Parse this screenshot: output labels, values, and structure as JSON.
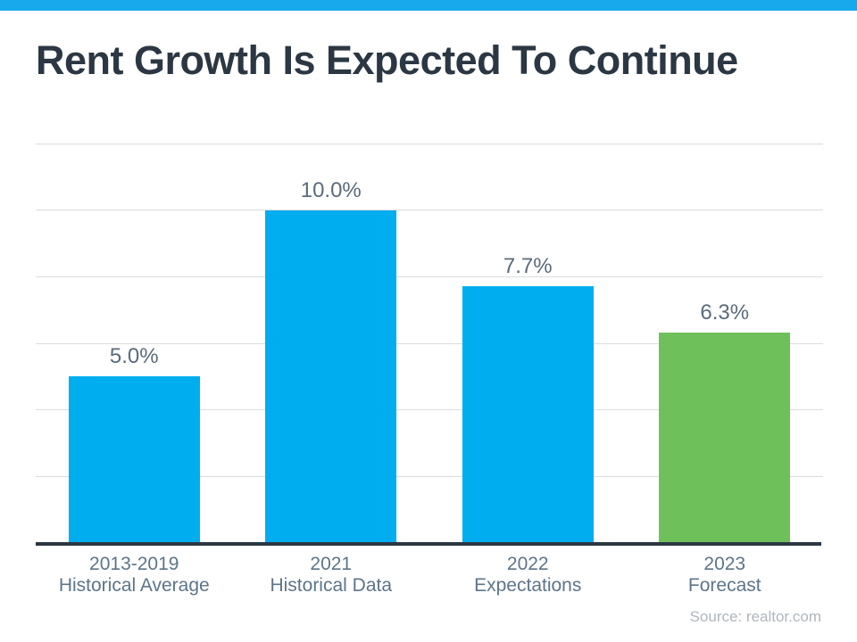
{
  "header": {
    "title": "Rent Growth Is Expected To Continue"
  },
  "colors": {
    "accent_blue": "#17A9EC",
    "bar_blue": "#00AEEF",
    "bar_green": "#6EC05A",
    "title_text": "#2B3844",
    "axis_line": "#2B3844",
    "gridline": "#DADCDE",
    "value_label_text": "#5A6B7A",
    "category_text": "#5C7589",
    "source_text": "#AFB6BC"
  },
  "chart_data": {
    "type": "bar",
    "title": "Rent Growth Is Expected To Continue",
    "categories": [
      "2013-2019\nHistorical Average",
      "2021\nHistorical Data",
      "2022\nExpectations",
      "2023\nForecast"
    ],
    "values": [
      5.0,
      10.0,
      7.7,
      6.3
    ],
    "data_labels": [
      "5.0%",
      "10.0%",
      "7.7%",
      "6.3%"
    ],
    "bar_colors": [
      "#00AEEF",
      "#00AEEF",
      "#00AEEF",
      "#6EC05A"
    ],
    "xlabel": "",
    "ylabel": "",
    "ylim": [
      0,
      12
    ],
    "gridline_step": 2,
    "grid": true,
    "legend": false,
    "axis_tick_labels_visible": false,
    "source": "Source: realtor.com"
  },
  "footer": {
    "source": "Source: realtor.com"
  }
}
